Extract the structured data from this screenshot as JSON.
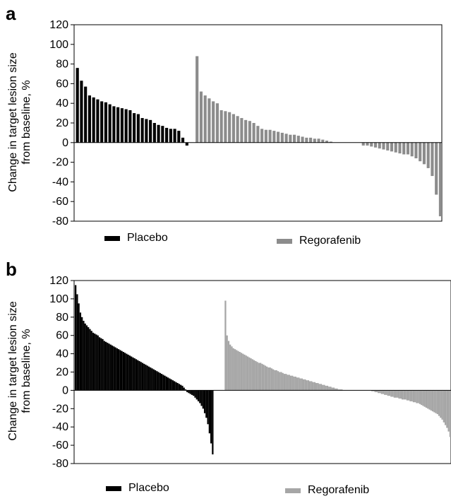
{
  "chart_data": [
    {
      "type": "bar",
      "panel": "a",
      "ylabel_line1": "Change in target lesion size",
      "ylabel_line2": "from baseline, %",
      "ylim": [
        -80,
        120
      ],
      "yticks": [
        -80,
        -60,
        -40,
        -20,
        0,
        20,
        40,
        60,
        80,
        100,
        120
      ],
      "grid": false,
      "legend_placement": "bottom",
      "series": [
        {
          "name": "Placebo",
          "color": "#000000",
          "values": [
            76,
            63,
            57,
            48,
            46,
            44,
            42,
            41,
            39,
            37,
            36,
            35,
            34,
            33,
            30,
            29,
            25,
            24,
            23,
            20,
            18,
            17,
            15,
            14,
            14,
            12,
            5,
            -3
          ]
        },
        {
          "name": "Regorafenib",
          "color": "#8c8c8c",
          "values": [
            88,
            52,
            48,
            45,
            42,
            40,
            33,
            32,
            31,
            29,
            27,
            25,
            23,
            22,
            20,
            17,
            14,
            13,
            13,
            12,
            11,
            10,
            9,
            8,
            8,
            7,
            6,
            5,
            5,
            4,
            4,
            3,
            2,
            1,
            0,
            0,
            0,
            0,
            0,
            0,
            0,
            -3,
            -3,
            -4,
            -5,
            -6,
            -7,
            -8,
            -9,
            -10,
            -11,
            -12,
            -12,
            -14,
            -16,
            -19,
            -22,
            -26,
            -34,
            -53,
            -75
          ]
        }
      ]
    },
    {
      "type": "bar",
      "panel": "b",
      "ylabel_line1": "Change in target lesion size",
      "ylabel_line2": "from baseline, %",
      "ylim": [
        -80,
        120
      ],
      "yticks": [
        -80,
        -60,
        -40,
        -20,
        0,
        20,
        40,
        60,
        80,
        100,
        120
      ],
      "grid": false,
      "legend_placement": "bottom",
      "series": [
        {
          "name": "Placebo",
          "color": "#000000",
          "values": [
            115,
            105,
            95,
            85,
            80,
            76,
            73,
            71,
            69,
            67,
            65,
            63,
            62,
            61,
            60,
            58,
            57,
            56,
            54,
            53,
            52,
            51,
            50,
            49,
            48,
            47,
            46,
            45,
            44,
            43,
            42,
            41,
            40,
            39,
            38,
            37,
            36,
            35,
            34,
            33,
            32,
            31,
            30,
            29,
            28,
            27,
            26,
            25,
            24,
            23,
            22,
            21,
            20,
            19,
            18,
            17,
            16,
            15,
            14,
            13,
            12,
            11,
            10,
            9,
            8,
            7,
            6,
            5,
            3,
            1,
            -2,
            -3,
            -4,
            -5,
            -6,
            -8,
            -10,
            -12,
            -14,
            -17,
            -20,
            -25,
            -30,
            -37,
            -47,
            -58,
            -70
          ]
        },
        {
          "name": "Regorafenib",
          "color": "#a6a6a6",
          "values": [
            98,
            60,
            54,
            50,
            48,
            46,
            45,
            44,
            43,
            42,
            41,
            40,
            39,
            38,
            37,
            36,
            35,
            34,
            33,
            32,
            31,
            30,
            30,
            29,
            28,
            27,
            26,
            25,
            25,
            24,
            23,
            22,
            22,
            21,
            20,
            20,
            19,
            18,
            18,
            17,
            17,
            16,
            16,
            15,
            15,
            14,
            14,
            13,
            13,
            12,
            12,
            11,
            11,
            10,
            10,
            9,
            9,
            8,
            8,
            7,
            7,
            6,
            6,
            5,
            5,
            4,
            4,
            3,
            3,
            2,
            2,
            1,
            1,
            1,
            0,
            0,
            0,
            0,
            0,
            0,
            0,
            0,
            0,
            0,
            0,
            0,
            0,
            0,
            0,
            0,
            0,
            0,
            -1,
            -1,
            -2,
            -2,
            -3,
            -3,
            -4,
            -4,
            -5,
            -5,
            -6,
            -6,
            -7,
            -7,
            -8,
            -8,
            -8,
            -9,
            -9,
            -10,
            -10,
            -10,
            -11,
            -11,
            -12,
            -12,
            -13,
            -13,
            -14,
            -14,
            -15,
            -16,
            -17,
            -18,
            -19,
            -20,
            -21,
            -22,
            -23,
            -24,
            -25,
            -26,
            -28,
            -30,
            -32,
            -35,
            -38,
            -41,
            -45,
            -51
          ]
        }
      ]
    }
  ],
  "panels": {
    "a": {
      "letter": "a"
    },
    "b": {
      "letter": "b"
    }
  }
}
